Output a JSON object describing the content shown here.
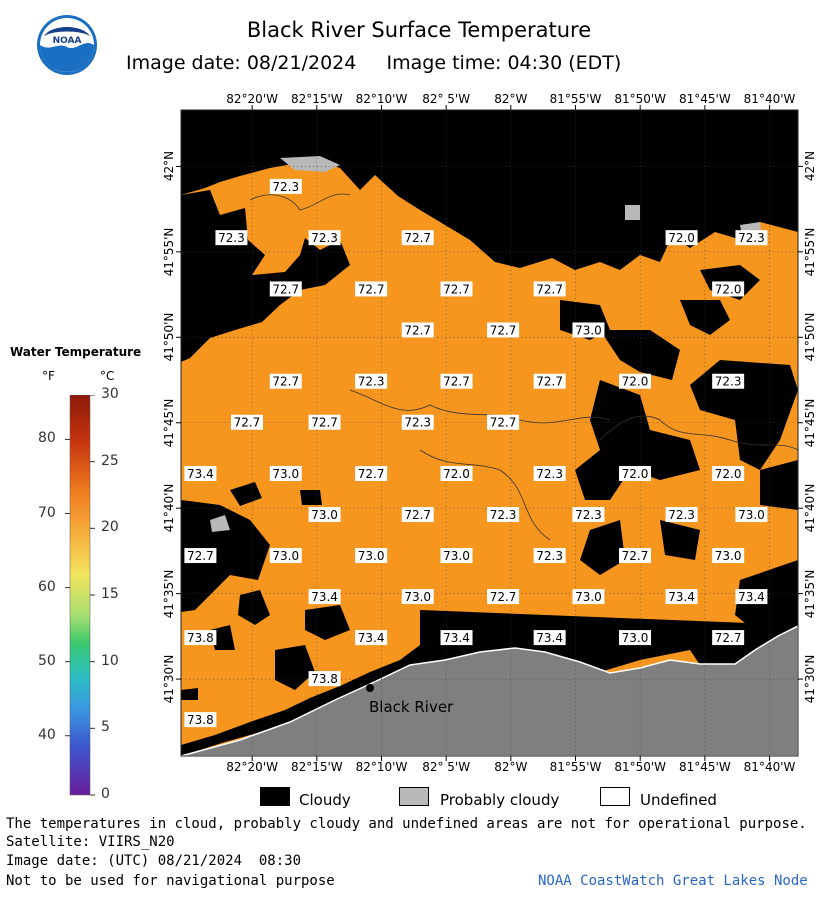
{
  "header": {
    "title": "Black River Surface Temperature",
    "subtitle": "Image date: 08/21/2024     Image time: 04:30 (EDT)",
    "logo_text": "NOAA"
  },
  "map": {
    "longitude_labels": [
      "82°20'W",
      "82°15'W",
      "82°10'W",
      "82° 5'W",
      "82°W",
      "81°55'W",
      "81°50'W",
      "81°45'W",
      "81°40'W"
    ],
    "latitude_labels": [
      "42°N",
      "41°55'N",
      "41°50'N",
      "41°45'N",
      "41°40'N",
      "41°35'N",
      "41°30'N"
    ],
    "place_label": "Black River",
    "colors": {
      "water": "#f7961e",
      "cloud": "#000000",
      "land": "#7f7f7f",
      "probably_cloudy": "#b9b9b9"
    },
    "temperature_labels": [
      {
        "text": "72.3",
        "lon": -82.29,
        "lat": 41.98
      },
      {
        "text": "72.3",
        "lon": -82.36,
        "lat": 41.93
      },
      {
        "text": "72.3",
        "lon": -82.24,
        "lat": 41.93
      },
      {
        "text": "72.7",
        "lon": -82.12,
        "lat": 41.93
      },
      {
        "text": "72.0",
        "lon": -81.78,
        "lat": 41.93
      },
      {
        "text": "72.3",
        "lon": -81.69,
        "lat": 41.93
      },
      {
        "text": "72.7",
        "lon": -82.29,
        "lat": 41.88
      },
      {
        "text": "72.7",
        "lon": -82.18,
        "lat": 41.88
      },
      {
        "text": "72.7",
        "lon": -82.07,
        "lat": 41.88
      },
      {
        "text": "72.7",
        "lon": -81.95,
        "lat": 41.88
      },
      {
        "text": "72.0",
        "lon": -81.72,
        "lat": 41.88
      },
      {
        "text": "72.7",
        "lon": -82.12,
        "lat": 41.84
      },
      {
        "text": "72.7",
        "lon": -82.01,
        "lat": 41.84
      },
      {
        "text": "73.0",
        "lon": -81.9,
        "lat": 41.84
      },
      {
        "text": "72.7",
        "lon": -82.29,
        "lat": 41.79
      },
      {
        "text": "72.3",
        "lon": -82.18,
        "lat": 41.79
      },
      {
        "text": "72.7",
        "lon": -82.07,
        "lat": 41.79
      },
      {
        "text": "72.7",
        "lon": -81.95,
        "lat": 41.79
      },
      {
        "text": "72.0",
        "lon": -81.84,
        "lat": 41.79
      },
      {
        "text": "72.3",
        "lon": -81.72,
        "lat": 41.79
      },
      {
        "text": "72.7",
        "lon": -82.34,
        "lat": 41.75
      },
      {
        "text": "72.7",
        "lon": -82.24,
        "lat": 41.75
      },
      {
        "text": "72.3",
        "lon": -82.12,
        "lat": 41.75
      },
      {
        "text": "72.7",
        "lon": -82.01,
        "lat": 41.75
      },
      {
        "text": "73.4",
        "lon": -82.4,
        "lat": 41.7
      },
      {
        "text": "73.0",
        "lon": -82.29,
        "lat": 41.7
      },
      {
        "text": "72.7",
        "lon": -82.18,
        "lat": 41.7
      },
      {
        "text": "72.0",
        "lon": -82.07,
        "lat": 41.7
      },
      {
        "text": "72.3",
        "lon": -81.95,
        "lat": 41.7
      },
      {
        "text": "72.0",
        "lon": -81.84,
        "lat": 41.7
      },
      {
        "text": "72.0",
        "lon": -81.72,
        "lat": 41.7
      },
      {
        "text": "73.0",
        "lon": -82.24,
        "lat": 41.66
      },
      {
        "text": "72.7",
        "lon": -82.12,
        "lat": 41.66
      },
      {
        "text": "72.3",
        "lon": -82.01,
        "lat": 41.66
      },
      {
        "text": "72.3",
        "lon": -81.9,
        "lat": 41.66
      },
      {
        "text": "72.3",
        "lon": -81.78,
        "lat": 41.66
      },
      {
        "text": "73.0",
        "lon": -81.69,
        "lat": 41.66
      },
      {
        "text": "72.7",
        "lon": -82.4,
        "lat": 41.62
      },
      {
        "text": "73.0",
        "lon": -82.29,
        "lat": 41.62
      },
      {
        "text": "73.0",
        "lon": -82.18,
        "lat": 41.62
      },
      {
        "text": "73.0",
        "lon": -82.07,
        "lat": 41.62
      },
      {
        "text": "72.3",
        "lon": -81.95,
        "lat": 41.62
      },
      {
        "text": "72.7",
        "lon": -81.84,
        "lat": 41.62
      },
      {
        "text": "73.0",
        "lon": -81.72,
        "lat": 41.62
      },
      {
        "text": "73.4",
        "lon": -82.24,
        "lat": 41.58
      },
      {
        "text": "73.0",
        "lon": -82.12,
        "lat": 41.58
      },
      {
        "text": "72.7",
        "lon": -82.01,
        "lat": 41.58
      },
      {
        "text": "73.0",
        "lon": -81.9,
        "lat": 41.58
      },
      {
        "text": "73.4",
        "lon": -81.78,
        "lat": 41.58
      },
      {
        "text": "73.4",
        "lon": -81.69,
        "lat": 41.58
      },
      {
        "text": "73.8",
        "lon": -82.4,
        "lat": 41.54
      },
      {
        "text": "73.4",
        "lon": -82.18,
        "lat": 41.54
      },
      {
        "text": "73.4",
        "lon": -82.07,
        "lat": 41.54
      },
      {
        "text": "73.4",
        "lon": -81.95,
        "lat": 41.54
      },
      {
        "text": "73.0",
        "lon": -81.84,
        "lat": 41.54
      },
      {
        "text": "72.7",
        "lon": -81.72,
        "lat": 41.54
      },
      {
        "text": "73.8",
        "lon": -82.24,
        "lat": 41.5
      },
      {
        "text": "73.8",
        "lon": -82.4,
        "lat": 41.46
      }
    ]
  },
  "colorbar": {
    "title": "Water Temperature",
    "unit_f": "°F",
    "unit_c": "°C",
    "fahrenheit_ticks": [
      "80",
      "70",
      "60",
      "50",
      "40"
    ],
    "celsius_ticks": [
      "30",
      "25",
      "20",
      "15",
      "10",
      "5",
      "0"
    ]
  },
  "legend": {
    "items": [
      {
        "label": "Cloudy",
        "color": "#000000"
      },
      {
        "label": "Probably cloudy",
        "color": "#b9b9b9"
      },
      {
        "label": "Undefined",
        "color": "#ffffff"
      }
    ]
  },
  "footer": {
    "disclaimer": "The temperatures in cloud, probably cloudy and undefined areas are not for operational purpose.",
    "satellite": "Satellite: VIIRS_N20",
    "utc_date": "Image date: (UTC) 08/21/2024  08:30",
    "navigation": "Not to be used for navigational purpose",
    "credit": "NOAA CoastWatch Great Lakes Node"
  }
}
